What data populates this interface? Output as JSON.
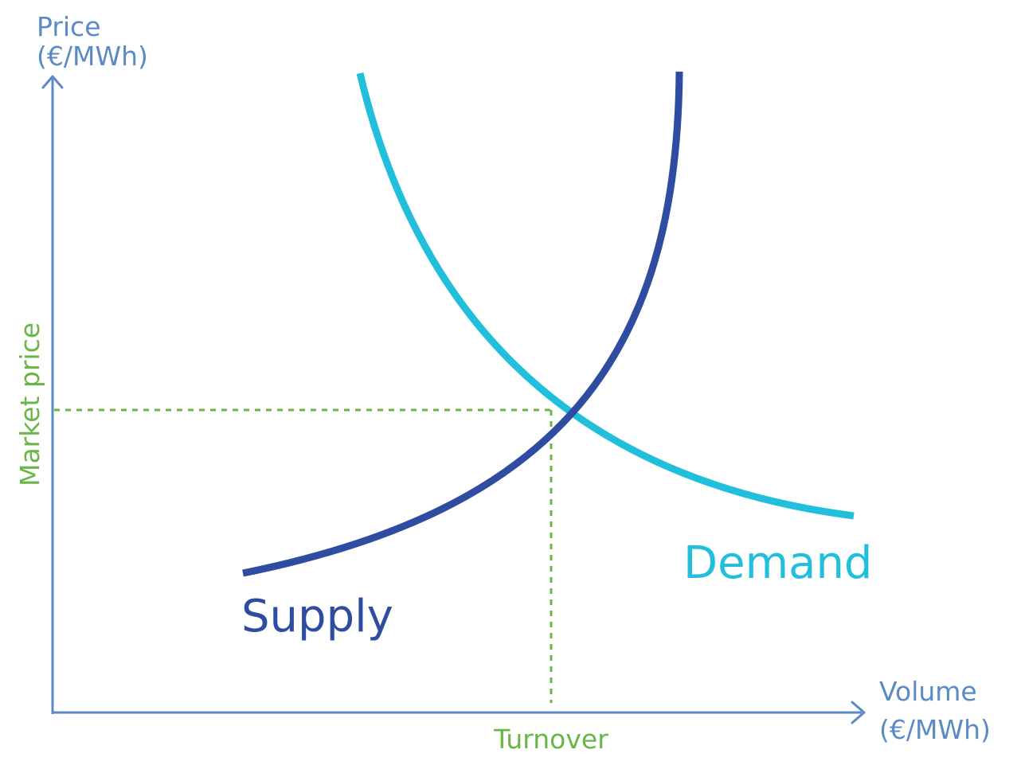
{
  "chart_data": {
    "type": "line",
    "title": "",
    "y_axis": {
      "label_line1": "Price",
      "label_line2": "(€/MWh)"
    },
    "x_axis": {
      "label_line1": "Volume",
      "label_line2": "(€/MWh)"
    },
    "series": [
      {
        "name": "Supply",
        "kind": "supply",
        "shape": "convex-increasing"
      },
      {
        "name": "Demand",
        "kind": "demand",
        "shape": "convex-decreasing"
      }
    ],
    "equilibrium": {
      "price_label": "Market price",
      "volume_label": "Turnover"
    },
    "grid": false,
    "legend": "none",
    "colors": {
      "axis": "#5b8ac4",
      "supply": "#2e4da0",
      "demand": "#22bfdc",
      "equilibrium": "#6ab547"
    }
  }
}
